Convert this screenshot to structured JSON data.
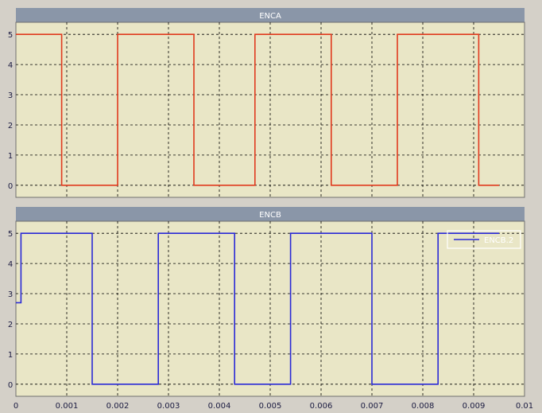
{
  "colors": {
    "window_bg": "#d4d0c8",
    "plot_bg": "#e9e6c6",
    "title_bar": "#8a96a8",
    "title_text": "#ffffff",
    "grid": "#000000",
    "tick_text": "#1a1a40",
    "legend_bg": "#ffffff"
  },
  "chart_data": [
    {
      "type": "line",
      "title": "ENCA",
      "xlabel": "",
      "ylabel": "",
      "xlim": [
        0,
        0.01
      ],
      "ylim": [
        -0.4,
        5.4
      ],
      "grid": true,
      "y_ticks": [
        0,
        1,
        2,
        3,
        4,
        5
      ],
      "x_ticks": [],
      "series": [
        {
          "color": "#e03a1e",
          "line_shape": "step",
          "x": [
            0,
            0.0009,
            0.0009,
            0.002,
            0.002,
            0.0035,
            0.0035,
            0.0047,
            0.0047,
            0.0062,
            0.0062,
            0.0075,
            0.0075,
            0.0091,
            0.0091,
            0.0095
          ],
          "y": [
            5,
            5,
            0,
            0,
            5,
            5,
            0,
            0,
            5,
            5,
            0,
            0,
            5,
            5,
            0,
            0
          ]
        }
      ]
    },
    {
      "type": "line",
      "title": "ENCB",
      "xlabel": "",
      "ylabel": "",
      "xlim": [
        0,
        0.01
      ],
      "ylim": [
        -0.4,
        5.4
      ],
      "grid": true,
      "y_ticks": [
        0,
        1,
        2,
        3,
        4,
        5
      ],
      "x_ticks": [
        "0",
        "0.001",
        "0.002",
        "0.003",
        "0.004",
        "0.005",
        "0.006",
        "0.007",
        "0.008",
        "0.009",
        "0.01"
      ],
      "legend": {
        "position": "top-right",
        "entries": [
          "ENCB.2"
        ]
      },
      "series": [
        {
          "name": "ENCB.2",
          "color": "#2a2ad6",
          "line_shape": "step",
          "x": [
            0,
            0.0001,
            0.0001,
            0.0015,
            0.0015,
            0.0028,
            0.0028,
            0.0043,
            0.0043,
            0.0054,
            0.0054,
            0.007,
            0.007,
            0.0083,
            0.0083,
            0.0095
          ],
          "y": [
            2.7,
            2.7,
            5,
            5,
            0,
            0,
            5,
            5,
            0,
            0,
            5,
            5,
            0,
            0,
            5,
            5
          ]
        }
      ]
    }
  ]
}
